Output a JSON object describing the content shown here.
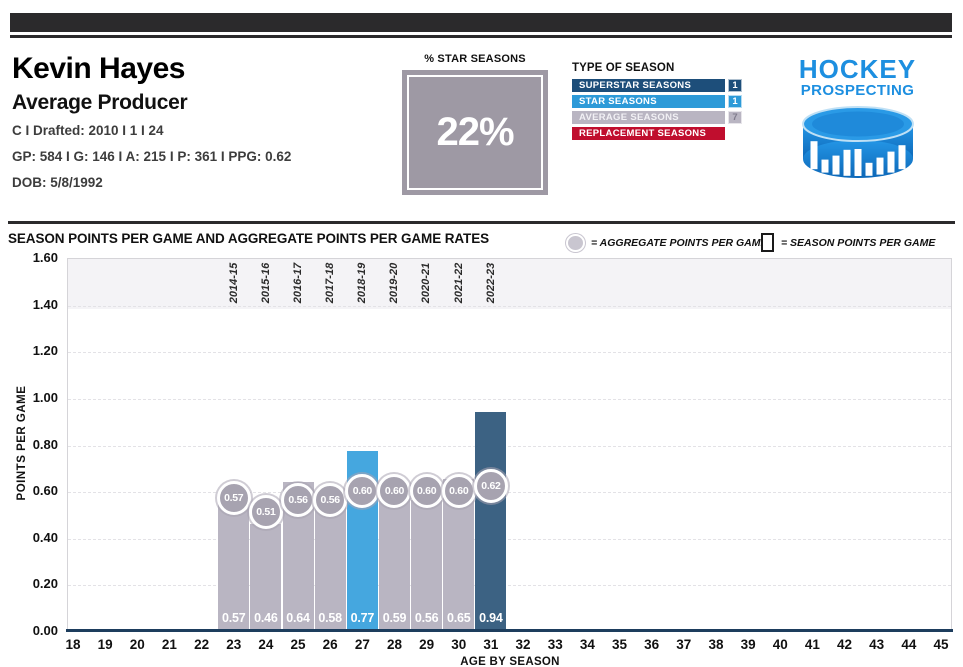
{
  "header": {
    "name": "Kevin Hayes",
    "archetype": "Average Producer",
    "position_draft_line": "C I Drafted: 2010 I 1 I 24",
    "stats_line": "GP: 584 I G: 146 I A: 215 I P: 361 I PPG: 0.62",
    "dob_line": "DOB: 5/8/1992"
  },
  "star_box": {
    "label": "% STAR SEASONS",
    "value": "22%"
  },
  "season_legend": {
    "title": "TYPE OF SEASON",
    "items": [
      {
        "label": "SUPERSTAR SEASONS",
        "count": "1",
        "type": "superstar"
      },
      {
        "label": "STAR SEASONS",
        "count": "1",
        "type": "star"
      },
      {
        "label": "AVERAGE SEASONS",
        "count": "7",
        "type": "average"
      },
      {
        "label": "REPLACEMENT SEASONS",
        "count": "",
        "type": "replacement"
      }
    ]
  },
  "logo": {
    "line1": "HOCKEY",
    "line2": "PROSPECTING"
  },
  "chart": {
    "title": "SEASON POINTS PER GAME AND AGGREGATE POINTS PER GAME RATES",
    "legend": {
      "aggregate_label": "= AGGREGATE POINTS PER GAME",
      "season_label": "= SEASON POINTS PER GAME"
    }
  },
  "chart_data": {
    "type": "bar",
    "title": "SEASON POINTS PER GAME AND AGGREGATE POINTS PER GAME RATES",
    "xlabel": "AGE BY SEASON",
    "ylabel": "POINTS PER GAME",
    "ylim": [
      0,
      1.6
    ],
    "ytick_step": 0.2,
    "y_ticks": [
      "0.00",
      "0.20",
      "0.40",
      "0.60",
      "0.80",
      "1.00",
      "1.20",
      "1.40",
      "1.60"
    ],
    "x_ticks": [
      18,
      19,
      20,
      21,
      22,
      23,
      24,
      25,
      26,
      27,
      28,
      29,
      30,
      31,
      32,
      33,
      34,
      35,
      36,
      37,
      38,
      39,
      40,
      41,
      42,
      43,
      44,
      45
    ],
    "grid": "dashed-horizontal",
    "legend_position": "top-right",
    "series": [
      {
        "name": "SEASON POINTS PER GAME",
        "values": [
          0.57,
          0.46,
          0.64,
          0.58,
          0.77,
          0.59,
          0.56,
          0.65,
          0.94
        ]
      },
      {
        "name": "AGGREGATE POINTS PER GAME",
        "values": [
          0.57,
          0.51,
          0.56,
          0.56,
          0.6,
          0.6,
          0.6,
          0.6,
          0.62
        ]
      }
    ],
    "bars": [
      {
        "age": 23,
        "season": "2014-15",
        "season_ppg": 0.57,
        "aggregate_ppg": 0.57,
        "type": "average"
      },
      {
        "age": 24,
        "season": "2015-16",
        "season_ppg": 0.46,
        "aggregate_ppg": 0.51,
        "type": "average"
      },
      {
        "age": 25,
        "season": "2016-17",
        "season_ppg": 0.64,
        "aggregate_ppg": 0.56,
        "type": "average"
      },
      {
        "age": 26,
        "season": "2017-18",
        "season_ppg": 0.58,
        "aggregate_ppg": 0.56,
        "type": "average"
      },
      {
        "age": 27,
        "season": "2018-19",
        "season_ppg": 0.77,
        "aggregate_ppg": 0.6,
        "type": "star"
      },
      {
        "age": 28,
        "season": "2019-20",
        "season_ppg": 0.59,
        "aggregate_ppg": 0.6,
        "type": "average"
      },
      {
        "age": 29,
        "season": "2020-21",
        "season_ppg": 0.56,
        "aggregate_ppg": 0.6,
        "type": "average"
      },
      {
        "age": 30,
        "season": "2021-22",
        "season_ppg": 0.65,
        "aggregate_ppg": 0.6,
        "type": "average"
      },
      {
        "age": 31,
        "season": "2022-23",
        "season_ppg": 0.94,
        "aggregate_ppg": 0.62,
        "type": "superstar"
      }
    ]
  },
  "colors": {
    "superstar": "#3c6283",
    "star": "#45a7df",
    "average": "#b9b5c2",
    "replacement": "#c00e2e",
    "legend_superstar": "#1d4e7a",
    "legend_star": "#2d9ad8",
    "legend_average": "#b9b5c2",
    "legend_replacement": "#c00e2e",
    "aggregate_circle": "#a7a3b0",
    "axis": "#1d3d5d",
    "accent_dark": "#2b2a2c",
    "logo_blue": "#1d8fe0"
  }
}
